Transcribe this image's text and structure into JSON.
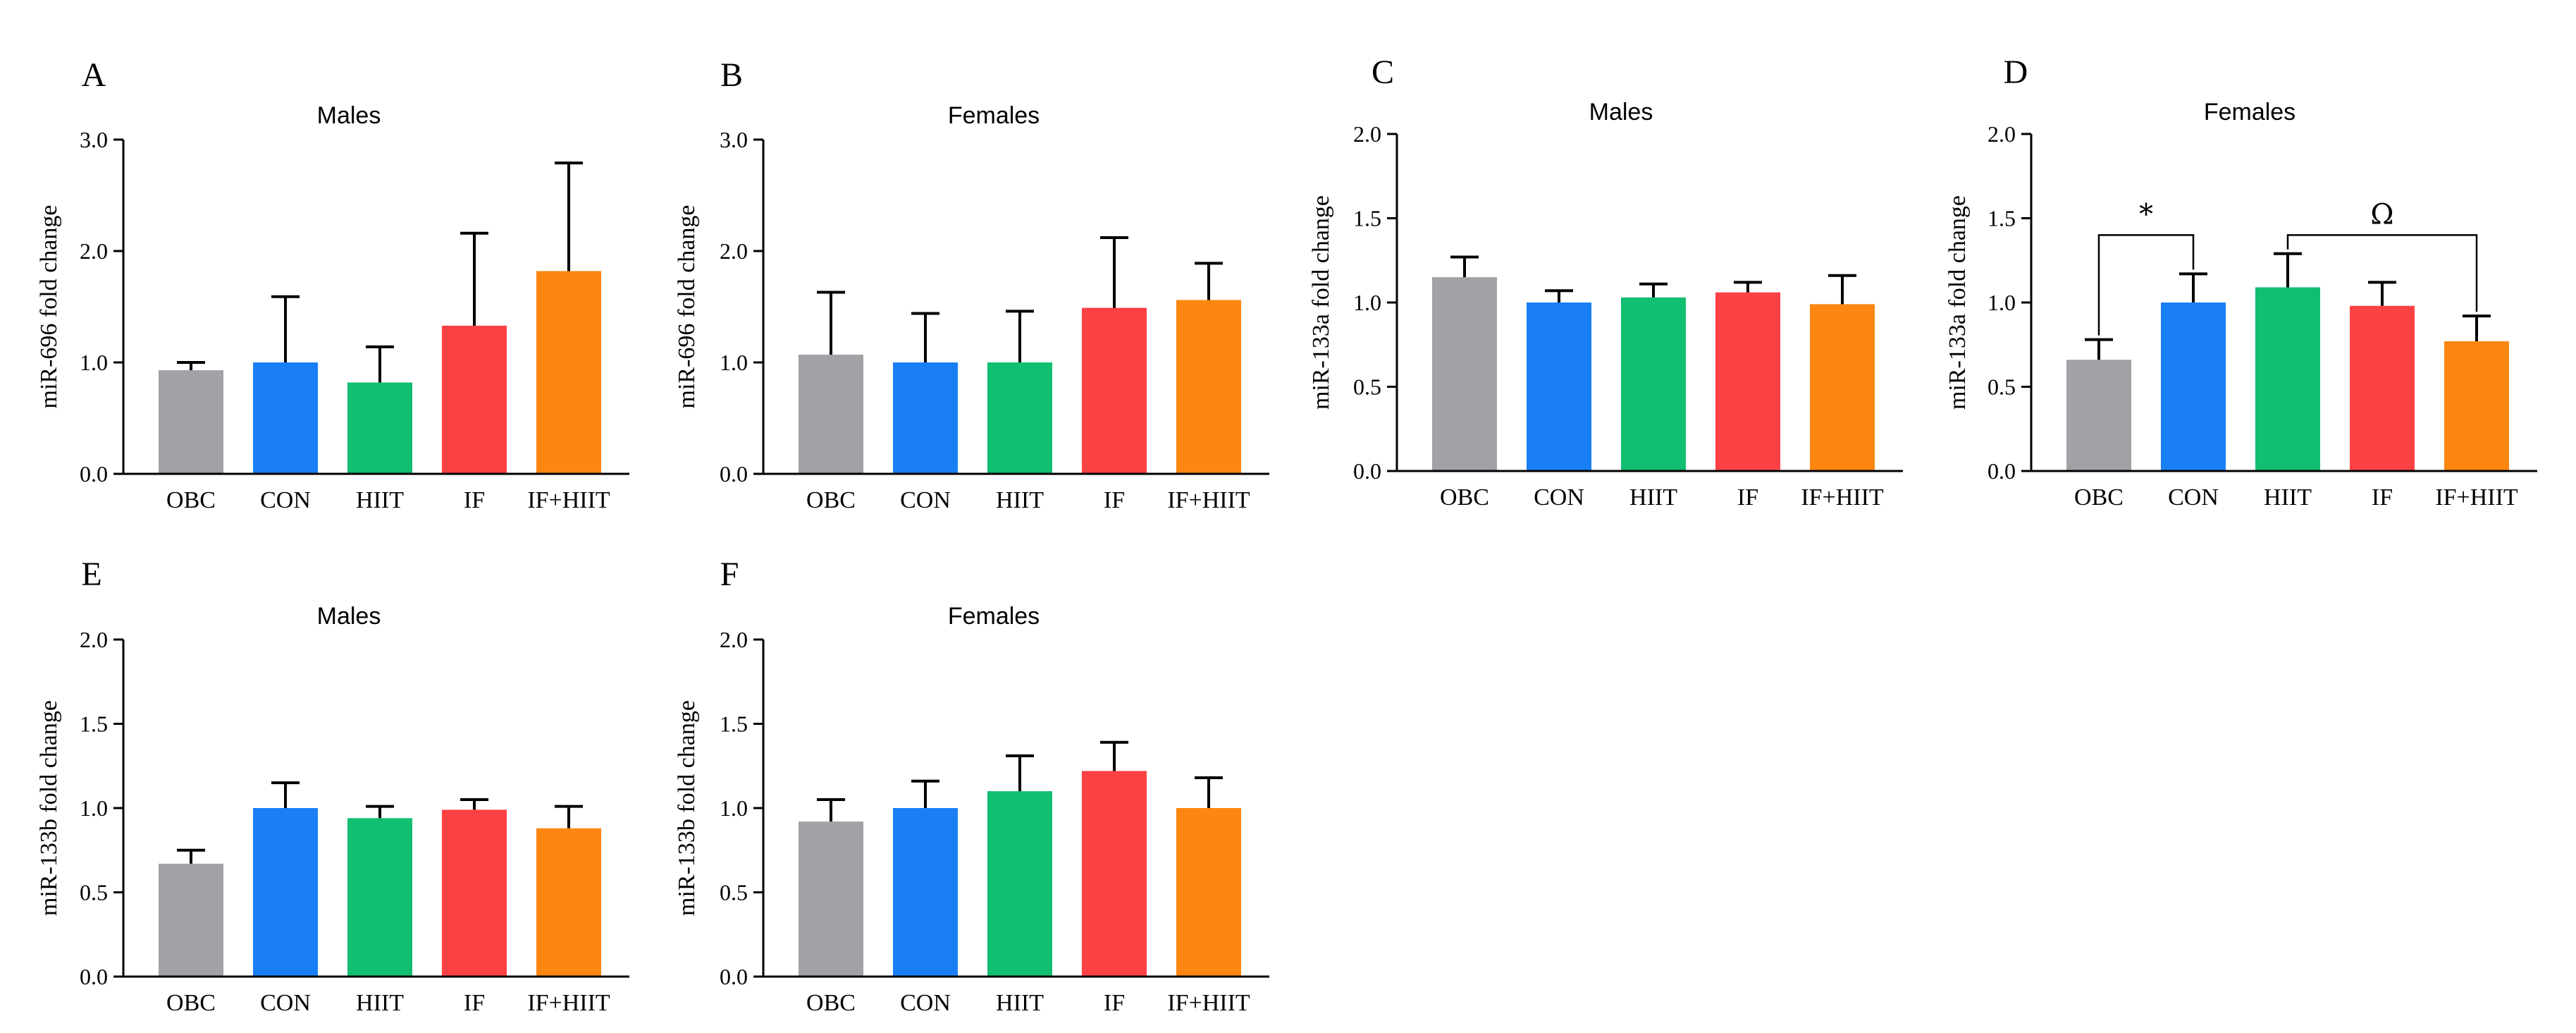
{
  "colors": {
    "OBC": "#a2a2a6",
    "CON": "#1a7ff5",
    "HIIT": "#12be70",
    "IF": "#fc4144",
    "IF+HIIT": "#fd8611"
  },
  "chart_data": [
    {
      "type": "bar",
      "panel": "A",
      "title": "Males",
      "ylabel": "miR-696 fold change",
      "xlabel": "",
      "categories": [
        "OBC",
        "CON",
        "HIIT",
        "IF",
        "IF+HIIT"
      ],
      "values": [
        0.93,
        1.0,
        0.82,
        1.33,
        1.82
      ],
      "errors": [
        0.07,
        0.59,
        0.32,
        0.83,
        0.97
      ],
      "ylim": [
        0,
        3.0
      ],
      "yticks": [
        0.0,
        1.0,
        2.0,
        3.0
      ],
      "ytick_labels": [
        "0.0",
        "1.0",
        "2.0",
        "3.0"
      ],
      "annotations": []
    },
    {
      "type": "bar",
      "panel": "B",
      "title": "Females",
      "ylabel": "miR-696 fold change",
      "xlabel": "",
      "categories": [
        "OBC",
        "CON",
        "HIIT",
        "IF",
        "IF+HIIT"
      ],
      "values": [
        1.07,
        1.0,
        1.0,
        1.49,
        1.56
      ],
      "errors": [
        0.56,
        0.44,
        0.46,
        0.63,
        0.33
      ],
      "ylim": [
        0,
        3.0
      ],
      "yticks": [
        0.0,
        1.0,
        2.0,
        3.0
      ],
      "ytick_labels": [
        "0.0",
        "1.0",
        "2.0",
        "3.0"
      ],
      "annotations": []
    },
    {
      "type": "bar",
      "panel": "C",
      "title": "Males",
      "ylabel": "miR-133a fold change",
      "xlabel": "",
      "categories": [
        "OBC",
        "CON",
        "HIIT",
        "IF",
        "IF+HIIT"
      ],
      "values": [
        1.15,
        1.0,
        1.03,
        1.06,
        0.99
      ],
      "errors": [
        0.12,
        0.07,
        0.08,
        0.06,
        0.17
      ],
      "ylim": [
        0,
        2.0
      ],
      "yticks": [
        0.0,
        0.5,
        1.0,
        1.5,
        2.0
      ],
      "ytick_labels": [
        "0.0",
        "0.5",
        "1.0",
        "1.5",
        "2.0"
      ],
      "annotations": []
    },
    {
      "type": "bar",
      "panel": "D",
      "title": "Females",
      "ylabel": "miR-133a fold change",
      "xlabel": "",
      "categories": [
        "OBC",
        "CON",
        "HIIT",
        "IF",
        "IF+HIIT"
      ],
      "values": [
        0.66,
        1.0,
        1.09,
        0.98,
        0.77
      ],
      "errors": [
        0.12,
        0.17,
        0.2,
        0.14,
        0.15
      ],
      "ylim": [
        0,
        2.0
      ],
      "yticks": [
        0.0,
        0.5,
        1.0,
        1.5,
        2.0
      ],
      "ytick_labels": [
        "0.0",
        "0.5",
        "1.0",
        "1.5",
        "2.0"
      ],
      "annotations": [
        {
          "label": "*",
          "from": 0,
          "to": 1,
          "level": 1.4
        },
        {
          "label": "Ω",
          "from": 2,
          "to": 4,
          "level": 1.4
        }
      ]
    },
    {
      "type": "bar",
      "panel": "E",
      "title": "Males",
      "ylabel": "miR-133b fold change",
      "xlabel": "",
      "categories": [
        "OBC",
        "CON",
        "HIIT",
        "IF",
        "IF+HIIT"
      ],
      "values": [
        0.67,
        1.0,
        0.94,
        0.99,
        0.88
      ],
      "errors": [
        0.08,
        0.15,
        0.07,
        0.06,
        0.13
      ],
      "ylim": [
        0,
        2.0
      ],
      "yticks": [
        0.0,
        0.5,
        1.0,
        1.5,
        2.0
      ],
      "ytick_labels": [
        "0.0",
        "0.5",
        "1.0",
        "1.5",
        "2.0"
      ],
      "annotations": []
    },
    {
      "type": "bar",
      "panel": "F",
      "title": "Females",
      "ylabel": "miR-133b fold change",
      "xlabel": "",
      "categories": [
        "OBC",
        "CON",
        "HIIT",
        "IF",
        "IF+HIIT"
      ],
      "values": [
        0.92,
        1.0,
        1.1,
        1.22,
        1.0
      ],
      "errors": [
        0.13,
        0.16,
        0.21,
        0.17,
        0.18
      ],
      "ylim": [
        0,
        2.0
      ],
      "yticks": [
        0.0,
        0.5,
        1.0,
        1.5,
        2.0
      ],
      "ytick_labels": [
        "0.0",
        "0.5",
        "1.0",
        "1.5",
        "2.0"
      ],
      "annotations": []
    }
  ]
}
